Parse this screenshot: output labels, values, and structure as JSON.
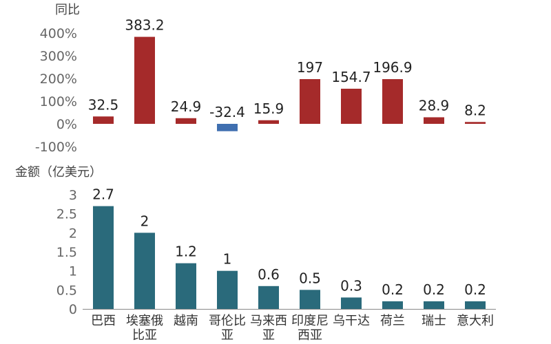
{
  "chart_data": [
    {
      "type": "bar",
      "ylabel": "同比",
      "y_unit": "%",
      "ylim": [
        -100,
        400
      ],
      "yticks": [
        "400%",
        "300%",
        "200%",
        "100%",
        "0%",
        "-100%"
      ],
      "categories": [
        "巴西",
        "埃塞俄比亚",
        "越南",
        "哥伦比亚",
        "马来西亚",
        "印度尼西亚",
        "乌干达",
        "荷兰",
        "瑞士",
        "意大利"
      ],
      "values": [
        32.5,
        383.2,
        24.9,
        -32.4,
        15.9,
        197,
        154.7,
        196.9,
        28.9,
        8.2
      ],
      "value_labels": [
        "32.5",
        "383.2",
        "24.9",
        "-32.4",
        "15.9",
        "197",
        "154.7",
        "196.9",
        "28.9",
        "8.2"
      ],
      "colors": {
        "positive": "#a52a2a",
        "negative": "#3f6fb0"
      }
    },
    {
      "type": "bar",
      "ylabel": "金额（亿美元）",
      "ylim": [
        0,
        3
      ],
      "yticks": [
        "3",
        "2.5",
        "2",
        "1.5",
        "1",
        "0.5",
        "0"
      ],
      "categories": [
        "巴西",
        "埃塞俄比亚",
        "越南",
        "哥伦比亚",
        "马来西亚",
        "印度尼西亚",
        "乌干达",
        "荷兰",
        "瑞士",
        "意大利"
      ],
      "category_lines": [
        [
          "巴西"
        ],
        [
          "埃塞俄",
          "比亚"
        ],
        [
          "越南"
        ],
        [
          "哥伦比",
          "亚"
        ],
        [
          "马来西",
          "亚"
        ],
        [
          "印度尼",
          "西亚"
        ],
        [
          "乌干达"
        ],
        [
          "荷兰"
        ],
        [
          "瑞士"
        ],
        [
          "意大利"
        ]
      ],
      "values": [
        2.7,
        2,
        1.2,
        1,
        0.6,
        0.5,
        0.3,
        0.2,
        0.2,
        0.2
      ],
      "value_labels": [
        "2.7",
        "2",
        "1.2",
        "1",
        "0.6",
        "0.5",
        "0.3",
        "0.2",
        "0.2",
        "0.2"
      ],
      "colors": {
        "bar": "#2a6a7b",
        "axis": "#888888"
      }
    }
  ]
}
